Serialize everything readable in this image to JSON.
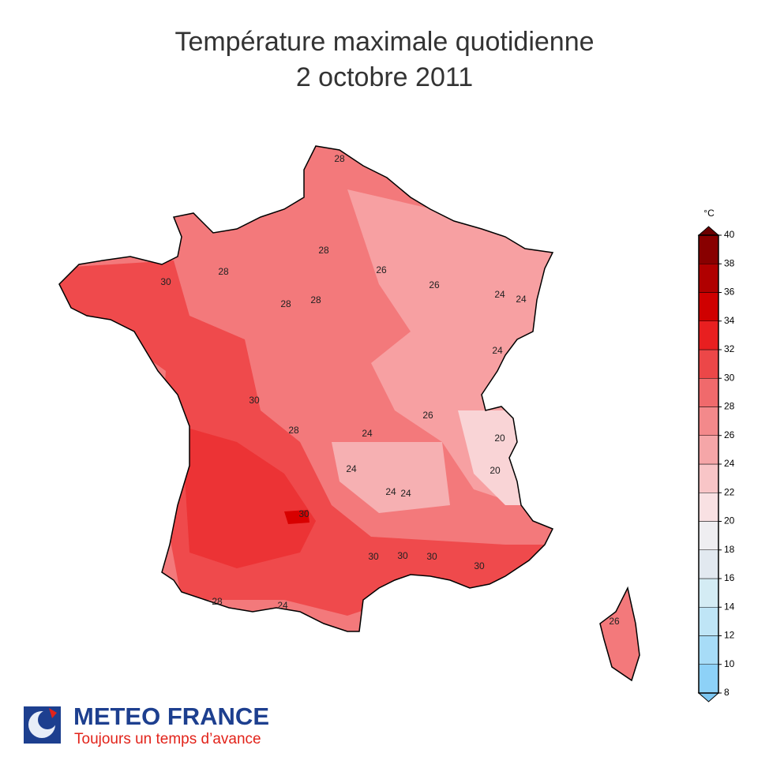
{
  "header": {
    "title": "Température maximale quotidienne",
    "subtitle": "2 octobre 2011"
  },
  "map_labels": [
    28,
    28,
    30,
    28,
    28,
    28,
    26,
    26,
    24,
    24,
    24,
    30,
    28,
    24,
    26,
    20,
    20,
    24,
    24,
    30,
    30,
    30,
    30,
    30,
    28,
    24,
    26,
    24
  ],
  "colorbar": {
    "unit": "°C",
    "ticks": [
      8,
      10,
      12,
      14,
      16,
      18,
      20,
      22,
      24,
      26,
      28,
      30,
      32,
      34,
      36,
      38,
      40
    ],
    "colors": [
      "#8dd1f7",
      "#a7dcf7",
      "#bfe5f6",
      "#d4ecf4",
      "#e2e9f0",
      "#efeef1",
      "#f9e1e3",
      "#f8c5c7",
      "#f5a6a8",
      "#f3898b",
      "#f06a6c",
      "#ec4748",
      "#e81f20",
      "#cf0000",
      "#b00000",
      "#880000"
    ],
    "under_color": "#7cc7f3",
    "over_color": "#6a0000"
  },
  "footer": {
    "brand": "METEO FRANCE",
    "slogan": "Toujours un temps d’avance"
  }
}
